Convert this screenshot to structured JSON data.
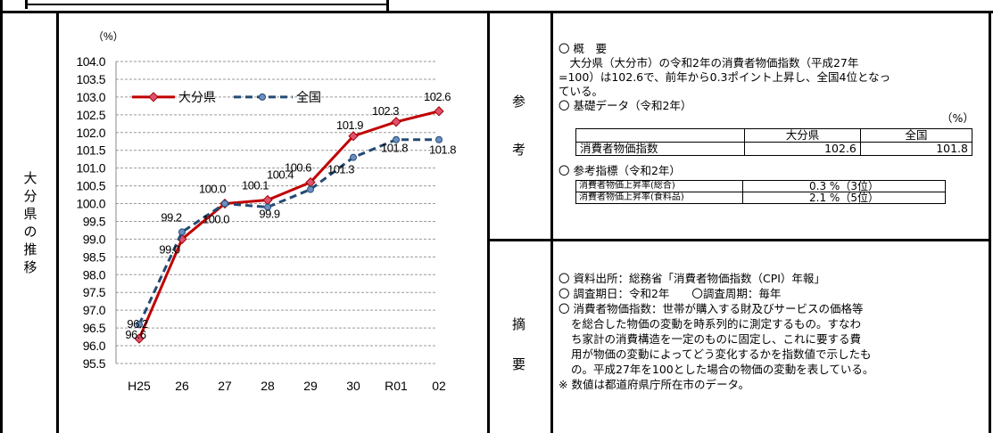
{
  "left_title": [
    "大",
    "分",
    "県",
    "の",
    "推",
    "移"
  ],
  "chart_data": {
    "type": "line",
    "unit_label": "（%）",
    "categories": [
      "H25",
      "26",
      "27",
      "28",
      "29",
      "30",
      "R01",
      "02"
    ],
    "ylim": [
      95.5,
      104.0
    ],
    "yticks": [
      "95.5",
      "96.0",
      "96.5",
      "97.0",
      "97.5",
      "98.0",
      "98.5",
      "99.0",
      "99.5",
      "100.0",
      "100.5",
      "101.0",
      "101.5",
      "102.0",
      "102.5",
      "103.0",
      "103.5",
      "104.0"
    ],
    "grid": true,
    "legend_position": "top-left",
    "series": [
      {
        "name": "大分県",
        "values": [
          96.2,
          99.0,
          100.0,
          100.1,
          100.6,
          101.9,
          102.3,
          102.6
        ],
        "color": "#c00000",
        "dash": "solid",
        "labels": [
          "96.2",
          "99.0",
          "100.0",
          "100.1",
          "100.6",
          "101.9",
          "102.3",
          "102.6"
        ]
      },
      {
        "name": "全国",
        "values": [
          96.6,
          99.2,
          100.0,
          99.9,
          100.4,
          101.3,
          101.8,
          101.8
        ],
        "color": "#244a73",
        "dash": "dashed",
        "labels": [
          "96.6",
          "99.2",
          "100.0",
          "99.9",
          "100.4",
          "101.3",
          "101.8",
          "101.8"
        ]
      }
    ]
  },
  "ref": {
    "label": [
      "参",
      "考"
    ],
    "heading": "〇 概　要",
    "body": [
      "　大分県（大分市）の令和2年の消費者物価指数（平成27年",
      "=100）は102.6で、前年から0.3ポイント上昇し、全国4位となっ",
      "ている。"
    ],
    "basic_title": "〇 基礎データ（令和2年）",
    "basic_unit": "（%）",
    "basic_headers": [
      "",
      "大分県",
      "全国"
    ],
    "basic_row": [
      "消費者物価指数",
      "102.6",
      "101.8"
    ],
    "ref_title": "〇 参考指標（令和2年）",
    "ref_rows": [
      [
        "消費者物価上昇率(総合)",
        "0.3 %（3位）"
      ],
      [
        "消費者物価上昇率(食料品)",
        "2.1 %（5位）"
      ]
    ]
  },
  "summary": {
    "label": [
      "摘",
      "要"
    ],
    "lines": [
      "〇 資料出所：総務省「消費者物価指数（CPI）年報」",
      "〇 調査期日：令和2年　　〇調査周期：毎年",
      "〇 消費者物価指数：世帯が購入する財及びサービスの価格等",
      "を総合した物価の変動を時系列的に測定するもの。すなわ",
      "ち家計の消費構造を一定のものに固定し、これに要する費",
      "用が物価の変動によってどう変化するかを指数値で示したも",
      "の。平成27年を100とした場合の物価の変動を表している。",
      "※ 数値は都道府県庁所在市のデータ。"
    ]
  }
}
